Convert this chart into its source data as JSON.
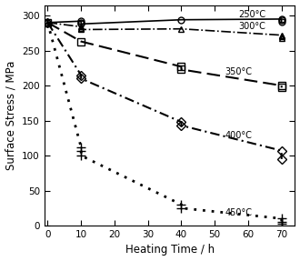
{
  "xlabel": "Heating Time / h",
  "ylabel": "Surface Stress / MPa",
  "xlim": [
    -1,
    74
  ],
  "ylim": [
    0,
    315
  ],
  "xticks": [
    0,
    10,
    20,
    30,
    40,
    50,
    60,
    70
  ],
  "yticks": [
    0,
    50,
    100,
    150,
    200,
    250,
    300
  ],
  "series": [
    {
      "label": "250°C",
      "x": [
        0,
        10,
        10,
        10,
        40,
        70,
        70,
        70
      ],
      "y": [
        290,
        292,
        290,
        288,
        294,
        295,
        293,
        291
      ],
      "linestyle": "-",
      "linewidth": 1.2,
      "marker": "o",
      "markersize": 5,
      "color": "#000000",
      "annotation": "250°C",
      "ann_x": 57,
      "ann_y": 301
    },
    {
      "label": "300°C",
      "x": [
        0,
        10,
        10,
        10,
        40,
        70,
        70,
        70
      ],
      "y": [
        290,
        284,
        282,
        280,
        281,
        272,
        270,
        268
      ],
      "linestyle": "-.",
      "linewidth": 1.2,
      "marker": "^",
      "markersize": 5,
      "color": "#000000",
      "annotation": "300°C",
      "ann_x": 57,
      "ann_y": 284
    },
    {
      "label": "350°C",
      "x": [
        0,
        10,
        40,
        40,
        70,
        70
      ],
      "y": [
        290,
        263,
        227,
        223,
        200,
        197
      ],
      "linestyle": "--",
      "linewidth": 1.5,
      "marker": "s",
      "markersize": 6,
      "color": "#000000",
      "annotation": "350°C",
      "ann_x": 53,
      "ann_y": 220
    },
    {
      "label": "400°C",
      "x": [
        0,
        10,
        10,
        40,
        40,
        70,
        70
      ],
      "y": [
        290,
        215,
        210,
        148,
        143,
        107,
        95
      ],
      "linestyle": "-.",
      "linewidth": 1.5,
      "dashes": [
        6,
        2,
        1,
        2
      ],
      "marker": "D",
      "markersize": 5,
      "color": "#000000",
      "annotation": "400°C",
      "ann_x": 53,
      "ann_y": 128
    },
    {
      "label": "450°C",
      "x": [
        0,
        10,
        10,
        10,
        40,
        40,
        70,
        70,
        70
      ],
      "y": [
        290,
        112,
        107,
        100,
        30,
        25,
        10,
        5,
        2
      ],
      "linestyle": ":",
      "linewidth": 2.0,
      "marker": "+",
      "markersize": 7,
      "color": "#000000",
      "annotation": "450°C",
      "ann_x": 53,
      "ann_y": 18
    }
  ],
  "background_color": "#ffffff",
  "fig_width": 3.3,
  "fig_height": 2.87,
  "dpi": 100
}
